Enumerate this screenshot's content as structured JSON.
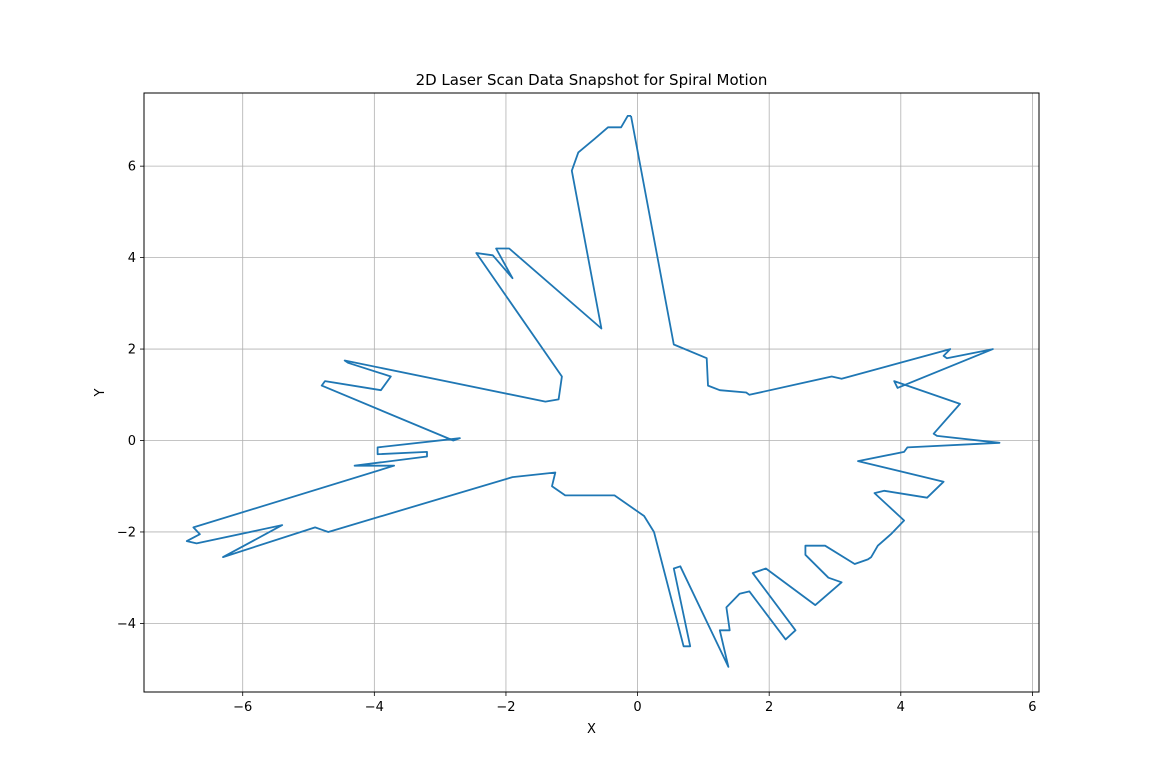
{
  "chart_data": {
    "type": "line",
    "title": "2D Laser Scan Data Snapshot for Spiral Motion",
    "xlabel": "X",
    "ylabel": "Y",
    "xlim": [
      -7.5,
      6.1
    ],
    "ylim": [
      -5.5,
      7.6
    ],
    "xticks": [
      -6,
      -4,
      -2,
      0,
      2,
      4,
      6
    ],
    "yticks": [
      -4,
      -2,
      0,
      2,
      4,
      6
    ],
    "xtick_labels": [
      "−6",
      "−4",
      "−2",
      "0",
      "2",
      "4",
      "6"
    ],
    "ytick_labels": [
      "−4",
      "−2",
      "0",
      "2",
      "4",
      "6"
    ],
    "grid": true,
    "series": [
      {
        "color": "#1f77b4",
        "points": [
          [
            -0.1,
            7.1
          ],
          [
            0.55,
            2.1
          ],
          [
            1.05,
            1.8
          ],
          [
            1.07,
            1.2
          ],
          [
            1.25,
            1.1
          ],
          [
            1.65,
            1.05
          ],
          [
            1.7,
            1.0
          ],
          [
            2.95,
            1.4
          ],
          [
            3.1,
            1.35
          ],
          [
            4.75,
            2.0
          ],
          [
            4.65,
            1.85
          ],
          [
            4.7,
            1.8
          ],
          [
            5.4,
            2.0
          ],
          [
            3.95,
            1.15
          ],
          [
            3.9,
            1.3
          ],
          [
            4.9,
            0.8
          ],
          [
            4.5,
            0.15
          ],
          [
            4.55,
            0.1
          ],
          [
            5.5,
            -0.05
          ],
          [
            4.1,
            -0.15
          ],
          [
            4.05,
            -0.25
          ],
          [
            3.35,
            -0.45
          ],
          [
            4.65,
            -0.9
          ],
          [
            4.4,
            -1.25
          ],
          [
            3.75,
            -1.1
          ],
          [
            3.6,
            -1.15
          ],
          [
            4.05,
            -1.75
          ],
          [
            3.85,
            -2.05
          ],
          [
            3.65,
            -2.3
          ],
          [
            3.55,
            -2.55
          ],
          [
            3.5,
            -2.6
          ],
          [
            3.3,
            -2.7
          ],
          [
            2.85,
            -2.3
          ],
          [
            2.55,
            -2.3
          ],
          [
            2.55,
            -2.5
          ],
          [
            2.9,
            -3.0
          ],
          [
            3.1,
            -3.1
          ],
          [
            2.7,
            -3.6
          ],
          [
            1.95,
            -2.8
          ],
          [
            1.75,
            -2.9
          ],
          [
            2.4,
            -4.15
          ],
          [
            2.25,
            -4.35
          ],
          [
            1.7,
            -3.3
          ],
          [
            1.55,
            -3.35
          ],
          [
            1.35,
            -3.65
          ],
          [
            1.4,
            -4.15
          ],
          [
            1.25,
            -4.15
          ],
          [
            1.38,
            -4.95
          ],
          [
            0.65,
            -2.75
          ],
          [
            0.55,
            -2.8
          ],
          [
            0.8,
            -4.5
          ],
          [
            0.7,
            -4.5
          ],
          [
            0.25,
            -2.0
          ],
          [
            0.1,
            -1.65
          ],
          [
            -0.35,
            -1.2
          ],
          [
            -1.1,
            -1.2
          ],
          [
            -1.3,
            -1.0
          ],
          [
            -1.25,
            -0.7
          ],
          [
            -1.9,
            -0.8
          ],
          [
            -4.7,
            -2.0
          ],
          [
            -4.8,
            -1.95
          ],
          [
            -4.9,
            -1.9
          ],
          [
            -6.3,
            -2.55
          ],
          [
            -5.4,
            -1.85
          ],
          [
            -6.7,
            -2.25
          ],
          [
            -6.85,
            -2.2
          ],
          [
            -6.65,
            -2.05
          ],
          [
            -6.75,
            -1.9
          ],
          [
            -3.7,
            -0.55
          ],
          [
            -4.3,
            -0.55
          ],
          [
            -3.2,
            -0.35
          ],
          [
            -3.2,
            -0.25
          ],
          [
            -3.95,
            -0.3
          ],
          [
            -3.95,
            -0.15
          ],
          [
            -2.7,
            0.05
          ],
          [
            -2.8,
            0.0
          ],
          [
            -4.8,
            1.2
          ],
          [
            -4.75,
            1.3
          ],
          [
            -3.9,
            1.1
          ],
          [
            -3.75,
            1.4
          ],
          [
            -4.4,
            1.7
          ],
          [
            -4.45,
            1.75
          ],
          [
            -1.4,
            0.85
          ],
          [
            -1.2,
            0.9
          ],
          [
            -1.15,
            1.4
          ],
          [
            -2.45,
            4.1
          ],
          [
            -2.2,
            4.05
          ],
          [
            -1.9,
            3.55
          ],
          [
            -2.15,
            4.2
          ],
          [
            -1.95,
            4.2
          ],
          [
            -0.55,
            2.45
          ],
          [
            -1.0,
            5.9
          ],
          [
            -0.9,
            6.3
          ],
          [
            -0.65,
            6.6
          ],
          [
            -0.45,
            6.85
          ],
          [
            -0.25,
            6.85
          ],
          [
            -0.15,
            7.1
          ],
          [
            -0.1,
            7.1
          ]
        ]
      }
    ]
  }
}
